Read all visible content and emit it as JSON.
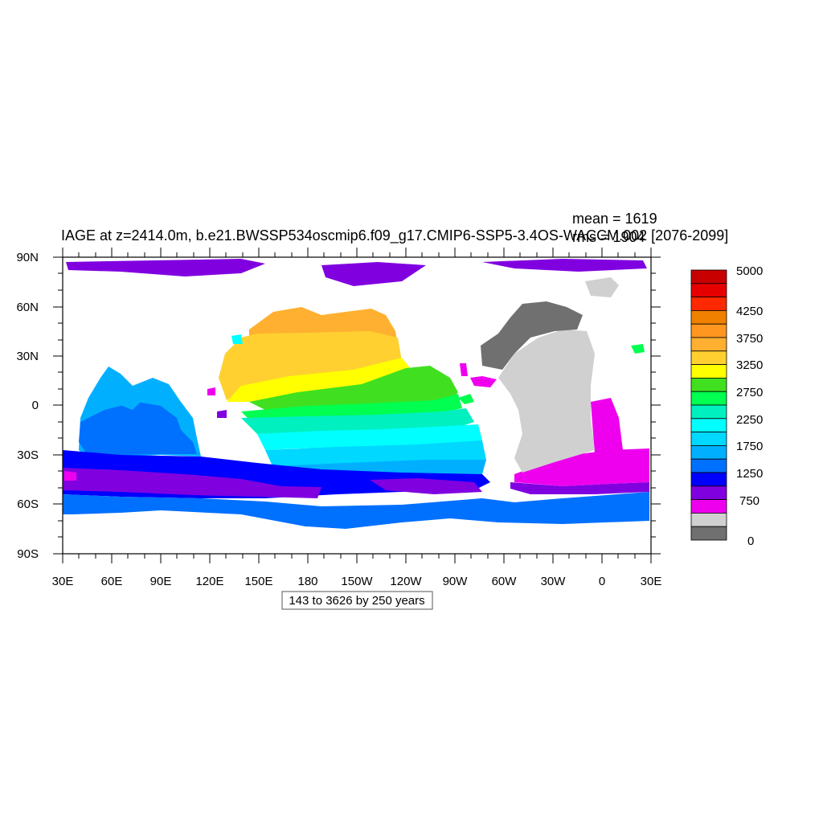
{
  "title": "IAGE at z=2414.0m, b.e21.BWSSP534oscmip6.f09_g17.CMIP6-SSP5-3.4OS-WACCM.002 [2076-2099]",
  "stats": {
    "mean": "mean = 1619",
    "rms": "rms = 1904"
  },
  "info_box": "143 to 3626 by 250 years",
  "axes": {
    "lat_labels": [
      "90N",
      "60N",
      "30N",
      "0",
      "30S",
      "60S",
      "90S"
    ],
    "lon_labels": [
      "30E",
      "60E",
      "90E",
      "120E",
      "150E",
      "180",
      "150W",
      "120W",
      "90W",
      "60W",
      "30W",
      "0",
      "30E"
    ]
  },
  "colorbar": {
    "labels": [
      "5000",
      "4250",
      "3750",
      "3250",
      "2750",
      "2250",
      "1750",
      "1250",
      "750",
      "0"
    ],
    "colors_top_to_bottom": [
      "#c80000",
      "#e60000",
      "#ff2800",
      "#f08000",
      "#ff9620",
      "#ffb030",
      "#ffd030",
      "#ffff00",
      "#40e020",
      "#00ff50",
      "#00f0c0",
      "#00ffff",
      "#00d8ff",
      "#00b0ff",
      "#0070ff",
      "#0000ff",
      "#8000e0",
      "#ee00ee",
      "#d0d0d0",
      "#707070"
    ]
  }
}
